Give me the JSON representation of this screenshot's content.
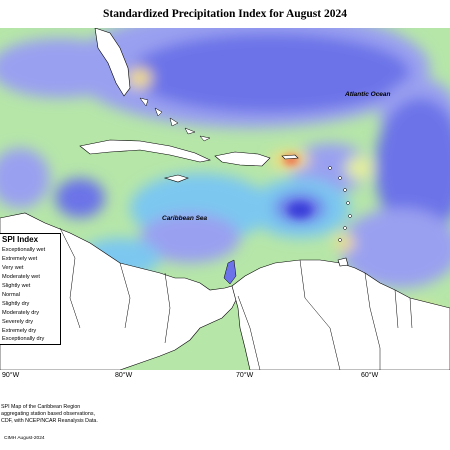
{
  "map": {
    "title": "Standardized Precipitation Index for August 2024",
    "labels": {
      "atlantic": "Atlantic Ocean",
      "caribbean": "Caribbean Sea"
    },
    "longitudes": [
      "90°W",
      "80°W",
      "70°W",
      "60°W"
    ],
    "legend": {
      "title": "SPI Index",
      "entries": [
        {
          "label": "Exceptionally wet",
          "color": "#3a3fd9"
        },
        {
          "label": "Extremely wet",
          "color": "#6c73e8"
        },
        {
          "label": "Very wet",
          "color": "#9aa0f0"
        },
        {
          "label": "Moderately wet",
          "color": "#7cc7f0"
        },
        {
          "label": "Slightly wet",
          "color": "#aee3e6"
        },
        {
          "label": "Normal",
          "color": "#b6e6a8"
        },
        {
          "label": "Slightly dry",
          "color": "#e4ef9a"
        },
        {
          "label": "Moderately dry",
          "color": "#f7e07a"
        },
        {
          "label": "Severely dry",
          "color": "#f6b35a"
        },
        {
          "label": "Extremely dry",
          "color": "#ee6b4a"
        },
        {
          "label": "Exceptionally dry",
          "color": "#c0302a"
        }
      ]
    },
    "credit_lines": [
      "SPI Map of the Caribbean Region",
      "aggregating station based observations,",
      "CDF, with NCEP/NCAR Reanalysis Data."
    ],
    "copyright": "CIMH August-2024"
  }
}
